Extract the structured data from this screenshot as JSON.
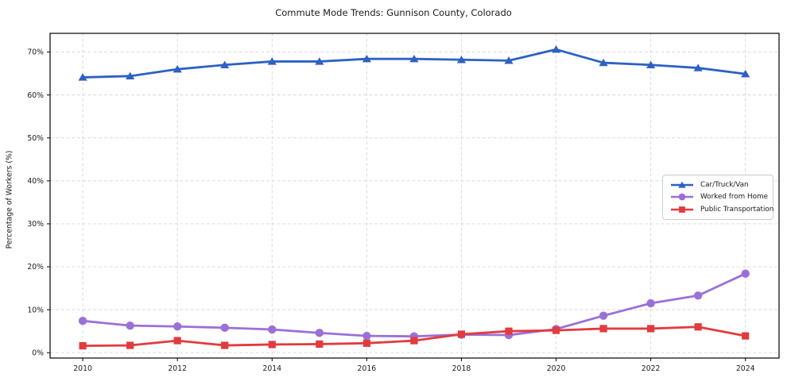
{
  "chart_data": {
    "type": "line",
    "title": "Commute Mode Trends: Gunnison County, Colorado",
    "xlabel": "",
    "ylabel": "Percentage of Workers (%)",
    "x": [
      2010,
      2011,
      2012,
      2013,
      2014,
      2015,
      2016,
      2017,
      2018,
      2019,
      2020,
      2021,
      2022,
      2023,
      2024
    ],
    "series": [
      {
        "name": "Car/Truck/Van",
        "color": "#2d61c4",
        "marker": "triangle",
        "values": [
          64.1,
          64.4,
          66.0,
          67.0,
          67.8,
          67.8,
          68.4,
          68.4,
          68.2,
          68.0,
          70.6,
          67.5,
          67.0,
          66.3,
          64.9
        ]
      },
      {
        "name": "Worked from Home",
        "color": "#9a70d8",
        "marker": "circle",
        "values": [
          7.4,
          6.3,
          6.1,
          5.8,
          5.4,
          4.6,
          3.9,
          3.8,
          4.2,
          4.1,
          5.5,
          8.6,
          11.5,
          13.3,
          18.4
        ]
      },
      {
        "name": "Public Transportation",
        "color": "#e23b3e",
        "marker": "square",
        "values": [
          1.6,
          1.7,
          2.8,
          1.7,
          1.9,
          2.0,
          2.2,
          2.8,
          4.3,
          5.0,
          5.2,
          5.6,
          5.6,
          6.0,
          3.9
        ]
      }
    ],
    "xticks": [
      2010,
      2012,
      2014,
      2016,
      2018,
      2020,
      2022,
      2024
    ],
    "yticks": [
      0,
      10,
      20,
      30,
      40,
      50,
      60,
      70
    ],
    "ytick_suffix": "%",
    "xlim": [
      2009.31,
      2024.71
    ],
    "ylim": [
      -1.25,
      74.35
    ],
    "grid": true,
    "grid_color": "#d8d8d8",
    "axis_color": "#000000",
    "text_color": "#1a1a1a",
    "legend_position": "center right"
  }
}
